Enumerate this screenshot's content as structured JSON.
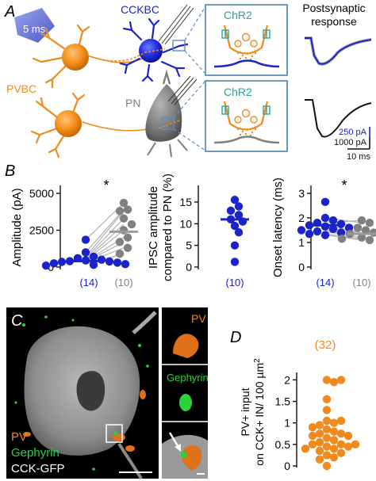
{
  "panels": {
    "a": {
      "letter": "A",
      "stim_label": "5 ms",
      "cell_labels": {
        "cckbc": "CCKBC",
        "pvbc": "PVBC",
        "pn": "PN"
      },
      "inset_label": "ChR2",
      "response_title_1": "Postsynaptic",
      "response_title_2": "response",
      "scale": {
        "blue": "250 pA",
        "black": "1000 pA",
        "time": "10 ms"
      },
      "colors": {
        "orange": "#f08a1c",
        "blue": "#1a24c8",
        "gray": "#808080",
        "box": "#5b8fc2",
        "teal": "#2aa398"
      }
    },
    "b": {
      "letter": "B",
      "charts": [
        {
          "ylabel": "Amplitude (pA)",
          "yticks": [
            "0",
            "2500",
            "5000"
          ],
          "ylim": [
            0,
            5000
          ],
          "significance": "*",
          "n_labels": [
            "(14)",
            "(10)"
          ],
          "groups": [
            {
              "name": "CCKBC",
              "color": "#1a24c8",
              "median": 400,
              "values": [
                1850,
                1000,
                700,
                600,
                500,
                450,
                400,
                380,
                350,
                300,
                250,
                200,
                150,
                100
              ]
            },
            {
              "name": "PN",
              "color": "#808080",
              "median": 2400,
              "values": [
                4350,
                3900,
                3800,
                3300,
                2900,
                2500,
                2000,
                1700,
                1300,
                900
              ]
            }
          ],
          "pairs": [
            [
              1850,
              4350
            ],
            [
              1000,
              3900
            ],
            [
              700,
              3800
            ],
            [
              600,
              3300
            ],
            [
              500,
              2900
            ],
            [
              450,
              2500
            ],
            [
              400,
              2000
            ],
            [
              350,
              1700
            ],
            [
              300,
              1300
            ],
            [
              200,
              900
            ]
          ]
        },
        {
          "ylabel_1": "IPSC amplitude",
          "ylabel_2": "compared to PN (%)",
          "yticks": [
            "0",
            "5",
            "10",
            "15"
          ],
          "ylim": [
            0,
            17
          ],
          "n_labels": [
            "(10)"
          ],
          "groups": [
            {
              "name": "ratio",
              "color": "#1a24c8",
              "median": 11,
              "values": [
                15.5,
                14,
                13,
                12,
                11,
                10.5,
                9.5,
                8,
                5,
                1.2
              ]
            }
          ]
        },
        {
          "ylabel": "Onset latency (ms)",
          "yticks": [
            "0",
            "1",
            "2",
            "3"
          ],
          "ylim": [
            0,
            3
          ],
          "significance": "*",
          "n_labels": [
            "(14)",
            "(10)"
          ],
          "groups": [
            {
              "name": "CCKBC",
              "color": "#1a24c8",
              "median": 1.7,
              "values": [
                2.65,
                2.0,
                1.9,
                1.8,
                1.75,
                1.7,
                1.65,
                1.6,
                1.55,
                1.5,
                1.45,
                1.4,
                1.35,
                1.3
              ]
            },
            {
              "name": "PN",
              "color": "#808080",
              "median": 1.35,
              "values": [
                1.9,
                1.8,
                1.6,
                1.5,
                1.4,
                1.35,
                1.3,
                1.2,
                1.15,
                1.1
              ]
            }
          ],
          "pairs": [
            [
              2.0,
              1.8
            ],
            [
              1.9,
              1.6
            ],
            [
              1.8,
              1.9
            ],
            [
              1.7,
              1.4
            ],
            [
              1.6,
              1.35
            ],
            [
              1.5,
              1.3
            ],
            [
              1.45,
              1.2
            ],
            [
              1.35,
              1.15
            ],
            [
              1.3,
              1.1
            ],
            [
              1.4,
              1.5
            ]
          ]
        }
      ]
    },
    "c": {
      "letter": "C",
      "legend": {
        "pv": "PV",
        "gephyrin": "Gephyrin",
        "cck": "CCK-GFP"
      },
      "inset_labels": {
        "pv": "PV",
        "gephyrin": "Gephyrin"
      }
    },
    "d": {
      "letter": "D",
      "ylabel_1": "PV+ input",
      "ylabel_2": "on CCK+ IN/ 100 µm",
      "ylabel_sup": "2",
      "yticks": [
        "0",
        "0.5",
        "1",
        "1.5",
        "2"
      ],
      "ylim": [
        0,
        2.1
      ],
      "n_label": "(32)",
      "color": "#f08a1c",
      "values": [
        2.0,
        2.0,
        1.95,
        1.55,
        1.3,
        1.05,
        1.05,
        1.0,
        0.95,
        0.9,
        0.85,
        0.8,
        0.75,
        0.75,
        0.7,
        0.7,
        0.65,
        0.6,
        0.55,
        0.5,
        0.5,
        0.5,
        0.45,
        0.45,
        0.4,
        0.4,
        0.35,
        0.3,
        0.25,
        0.2,
        0.15,
        0.0
      ]
    }
  }
}
